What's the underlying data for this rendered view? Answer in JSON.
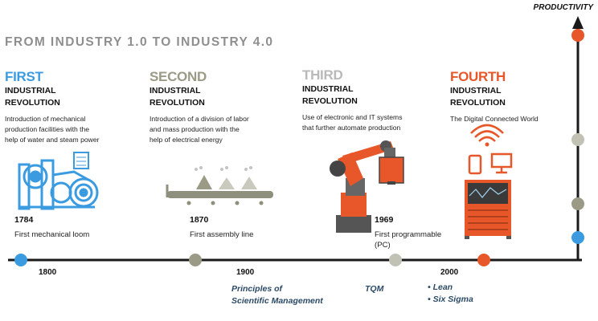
{
  "axis_label": "PRODUCTIVITY",
  "title": "FROM INDUSTRY 1.0 TO INDUSTRY 4.0",
  "eras": [
    {
      "ordinal": "FIRST",
      "subtitle_line1": "INDUSTRIAL",
      "subtitle_line2": "REVOLUTION",
      "desc_line1": "Introduction of mechanical",
      "desc_line2": "production facilities with the",
      "desc_line3": "help of water and steam power",
      "color": "#3b9be0"
    },
    {
      "ordinal": "SECOND",
      "subtitle_line1": "INDUSTRIAL",
      "subtitle_line2": "REVOLUTION",
      "desc_line1": "Introduction of a division of labor",
      "desc_line2": "and mass production with the",
      "desc_line3": "help of electrical energy",
      "color": "#9a9a86"
    },
    {
      "ordinal": "THIRD",
      "subtitle_line1": "INDUSTRIAL",
      "subtitle_line2": "REVOLUTION",
      "desc_line1": "Use of electronic and IT systems",
      "desc_line2": "that further automate production",
      "desc_line3": "",
      "color": "#b9b9b9"
    },
    {
      "ordinal": "FOURTH",
      "subtitle_line1": "INDUSTRIAL",
      "subtitle_line2": "REVOLUTION",
      "desc_line1": "The Digital Connected World",
      "desc_line2": "",
      "desc_line3": "",
      "color": "#e8572a"
    }
  ],
  "milestones": [
    {
      "year": "1784",
      "label_line1": "First mechanical loom",
      "label_line2": ""
    },
    {
      "year": "1870",
      "label_line1": "First assembly line",
      "label_line2": ""
    },
    {
      "year": "1969",
      "label_line1": "First programmable",
      "label_line2": "(PC)"
    }
  ],
  "ticks": [
    "1800",
    "1900",
    "2000"
  ],
  "methods": {
    "scientific_line1": "Principles of",
    "scientific_line2": "Scientific Management",
    "tqm": "TQM",
    "lean": "• Lean",
    "six_sigma": "• Six Sigma"
  },
  "colors": {
    "blue": "#3b9be0",
    "gray_olive": "#9a9a86",
    "orange": "#e8572a",
    "line": "#1a1a1a"
  }
}
